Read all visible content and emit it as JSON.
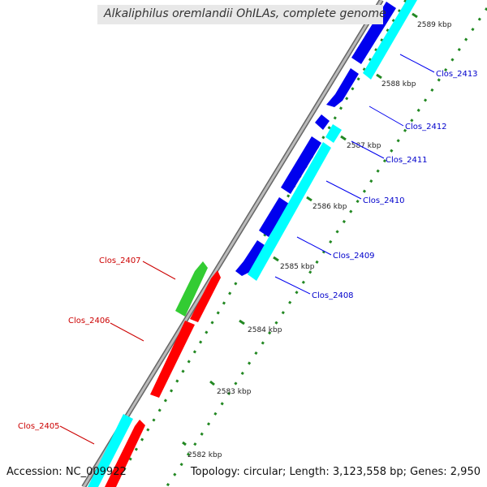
{
  "title": "Alkaliphilus oremlandii OhILAs, complete genome",
  "footer": {
    "accession": "Accession: NC_009922",
    "summary": "Topology: circular; Length: 3,123,558 bp; Genes: 2,950"
  },
  "colors": {
    "forward_cds": "#0000ee",
    "forward_gene": "#00ffff",
    "reverse_cds": "#ff0000",
    "reverse_other": "#33cc33",
    "backbone": "#999999",
    "ticks": "#228822",
    "forward_label": "#0000cc",
    "reverse_label": "#cc0000"
  },
  "scale_ticks": [
    {
      "label": "2582 kbp"
    },
    {
      "label": "2583 kbp"
    },
    {
      "label": "2584 kbp"
    },
    {
      "label": "2585 kbp"
    },
    {
      "label": "2586 kbp"
    },
    {
      "label": "2587 kbp"
    },
    {
      "label": "2588 kbp"
    },
    {
      "label": "2589 kbp"
    }
  ],
  "forward_genes": [
    {
      "name": "Clos_2408"
    },
    {
      "name": "Clos_2409"
    },
    {
      "name": "Clos_2410"
    },
    {
      "name": "Clos_2411"
    },
    {
      "name": "Clos_2412"
    },
    {
      "name": "Clos_2413"
    }
  ],
  "reverse_genes": [
    {
      "name": "Clos_2405"
    },
    {
      "name": "Clos_2406"
    },
    {
      "name": "Clos_2407"
    }
  ]
}
